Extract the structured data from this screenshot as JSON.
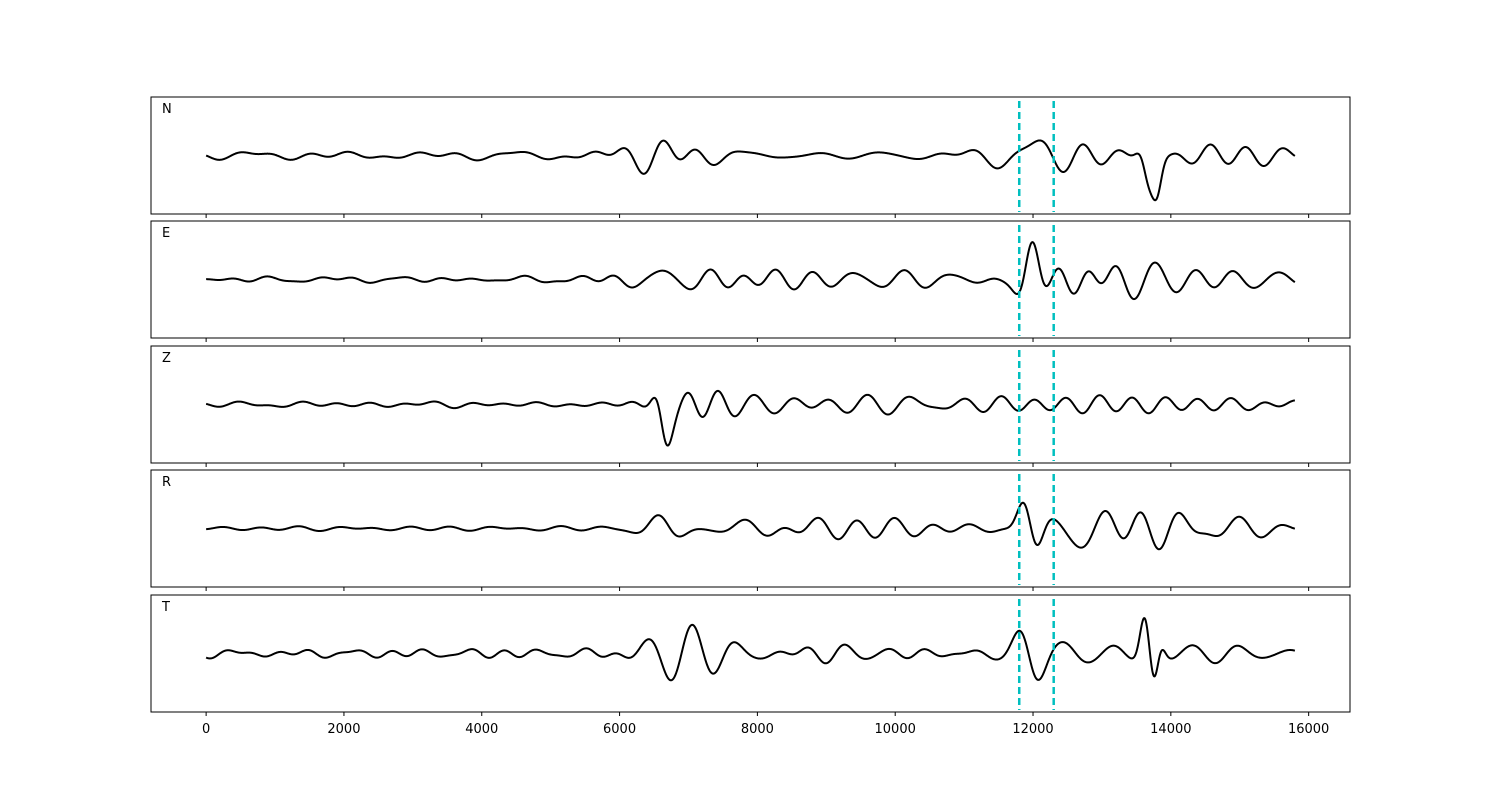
{
  "chart_data": {
    "type": "line",
    "sharex": true,
    "xlim": [
      -800,
      16600
    ],
    "xticks": [
      0,
      2000,
      4000,
      6000,
      8000,
      10000,
      12000,
      14000,
      16000
    ],
    "xtick_labels": [
      "0",
      "2000",
      "4000",
      "6000",
      "8000",
      "10000",
      "12000",
      "14000",
      "16000"
    ],
    "trace_color": "#000000",
    "marker_color": "#00bfbf",
    "markers": [
      11800,
      12300
    ],
    "panels": [
      {
        "label": "N",
        "seed": 11,
        "x_range": [
          0,
          15800
        ],
        "ylim": [
          -1,
          1
        ],
        "noise_amp": 0.1,
        "events": [
          {
            "x": 6600,
            "amp": 0.26,
            "width": 800
          },
          {
            "x": 7300,
            "amp": 0.16,
            "width": 1800
          },
          {
            "x": 11900,
            "amp": 0.28,
            "width": 500
          },
          {
            "x": 12800,
            "amp": 0.22,
            "width": 1400
          },
          {
            "x": 13650,
            "amp": 0.85,
            "width": 120
          },
          {
            "x": 13800,
            "amp": 0.65,
            "width": 100
          },
          {
            "x": 14600,
            "amp": 0.22,
            "width": 1200
          }
        ]
      },
      {
        "label": "E",
        "seed": 23,
        "x_range": [
          0,
          15800
        ],
        "ylim": [
          -1,
          1
        ],
        "noise_amp": 0.08,
        "events": [
          {
            "x": 6650,
            "amp": 0.3,
            "width": 400
          },
          {
            "x": 7500,
            "amp": 0.17,
            "width": 1600
          },
          {
            "x": 9500,
            "amp": 0.14,
            "width": 1500
          },
          {
            "x": 11950,
            "amp": 0.78,
            "width": 200
          },
          {
            "x": 12600,
            "amp": 0.32,
            "width": 600
          },
          {
            "x": 13500,
            "amp": 0.36,
            "width": 700
          },
          {
            "x": 14800,
            "amp": 0.2,
            "width": 900
          }
        ]
      },
      {
        "label": "Z",
        "seed": 37,
        "x_range": [
          0,
          15800
        ],
        "ylim": [
          -1,
          1
        ],
        "noise_amp": 0.07,
        "events": [
          {
            "x": 6650,
            "amp": 0.85,
            "width": 150
          },
          {
            "x": 7000,
            "amp": 0.35,
            "width": 500
          },
          {
            "x": 8000,
            "amp": 0.2,
            "width": 1500
          },
          {
            "x": 10000,
            "amp": 0.14,
            "width": 1500
          },
          {
            "x": 13000,
            "amp": 0.13,
            "width": 2500
          }
        ]
      },
      {
        "label": "R",
        "seed": 53,
        "x_range": [
          0,
          15800
        ],
        "ylim": [
          -1,
          1
        ],
        "noise_amp": 0.09,
        "events": [
          {
            "x": 6650,
            "amp": 0.3,
            "width": 400
          },
          {
            "x": 7800,
            "amp": 0.15,
            "width": 1600
          },
          {
            "x": 9500,
            "amp": 0.17,
            "width": 1400
          },
          {
            "x": 11950,
            "amp": 0.8,
            "width": 200
          },
          {
            "x": 12700,
            "amp": 0.3,
            "width": 700
          },
          {
            "x": 13700,
            "amp": 0.4,
            "width": 800
          },
          {
            "x": 14900,
            "amp": 0.22,
            "width": 900
          }
        ]
      },
      {
        "label": "T",
        "seed": 71,
        "x_range": [
          0,
          15800
        ],
        "ylim": [
          -1,
          1
        ],
        "noise_amp": 0.09,
        "events": [
          {
            "x": 6850,
            "amp": 0.42,
            "width": 450
          },
          {
            "x": 7500,
            "amp": 0.2,
            "width": 1400
          },
          {
            "x": 9000,
            "amp": 0.16,
            "width": 1500
          },
          {
            "x": 11950,
            "amp": 0.5,
            "width": 300
          },
          {
            "x": 12800,
            "amp": 0.25,
            "width": 1000
          },
          {
            "x": 13650,
            "amp": 0.85,
            "width": 120
          },
          {
            "x": 13800,
            "amp": 0.6,
            "width": 100
          },
          {
            "x": 14700,
            "amp": 0.22,
            "width": 1200
          }
        ]
      }
    ]
  }
}
